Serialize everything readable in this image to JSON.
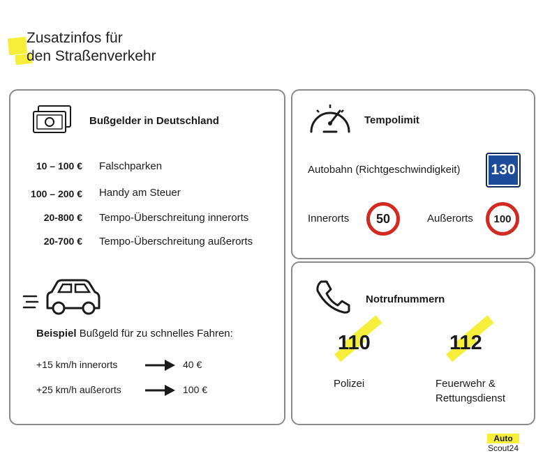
{
  "header": {
    "title_line1": "Zusatzinfos für",
    "title_line2": "den Straßenverkehr"
  },
  "fines": {
    "title": "Bußgelder in Deutschland",
    "icon": "money-icon",
    "items": [
      {
        "amount": "10 – 100 €",
        "desc": "Falschparken"
      },
      {
        "amount": "100 – 200 €",
        "desc": "Handy am Steuer"
      },
      {
        "amount": "20-800 €",
        "desc": "Tempo-Überschreitung innerorts"
      },
      {
        "amount": "20-700 €",
        "desc": "Tempo-Überschreitung außerorts"
      }
    ],
    "example": {
      "title_bold": "Beispiel",
      "title_rest": " Bußgeld für zu schnelles Fahren:",
      "rows": [
        {
          "condition": "+15 km/h innerorts",
          "amount": "40 €"
        },
        {
          "condition": "+25 km/h außerorts",
          "amount": "100 €"
        }
      ]
    }
  },
  "speed": {
    "title": "Tempolimit",
    "icon": "speedometer-icon",
    "autobahn_label": "Autobahn (Richtgeschwindigkeit)",
    "autobahn_value": "130",
    "innerorts_label": "Innerorts",
    "innerorts_value": "50",
    "ausserorts_label": "Außerorts",
    "ausserorts_value": "100",
    "colors": {
      "sign_blue": "#1d4c9a",
      "sign_red": "#d22a22"
    }
  },
  "emergency": {
    "title": "Notrufnummern",
    "icon": "phone-icon",
    "police_number": "110",
    "police_label": "Polizei",
    "fire_number": "112",
    "fire_label_line1": "Feuerwehr &",
    "fire_label_line2": "Rettungsdienst",
    "highlight_color": "#f5ef3a"
  },
  "logo": {
    "top": "Auto",
    "bottom": "Scout24"
  }
}
